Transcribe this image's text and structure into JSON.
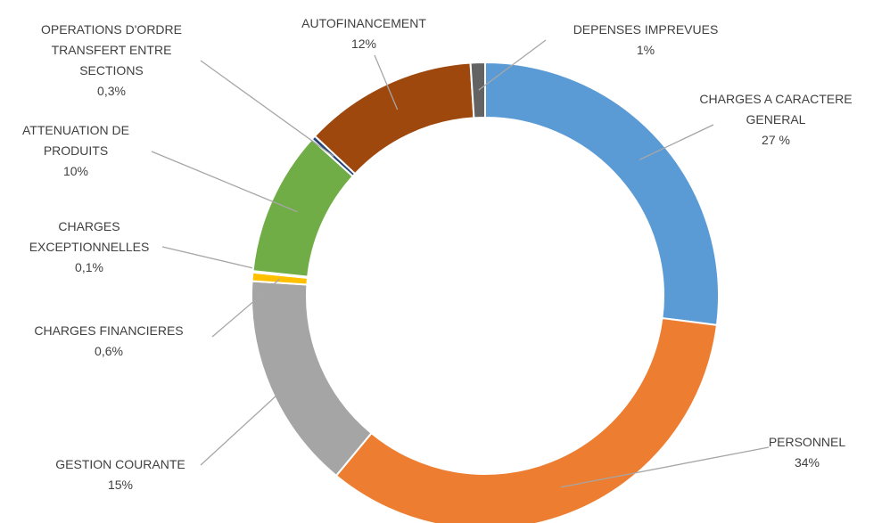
{
  "chart_data": {
    "type": "donut",
    "categories": [
      "CHARGES A CARACTERE GENERAL",
      "PERSONNEL",
      "GESTION COURANTE",
      "CHARGES FINANCIERES",
      "CHARGES EXCEPTIONNELLES",
      "ATTENUATION DE PRODUITS",
      "OPERATIONS D'ORDRE TRANSFERT ENTRE SECTIONS",
      "AUTOFINANCEMENT",
      "DEPENSES IMPREVUES"
    ],
    "values": [
      27,
      34,
      15,
      0.6,
      0.1,
      10,
      0.3,
      12,
      1
    ],
    "value_labels": [
      "27 %",
      "34%",
      "15%",
      "0,6%",
      "0,1%",
      "10%",
      "0,3%",
      "12%",
      "1%"
    ],
    "colors": [
      "#5b9bd5",
      "#ed7d31",
      "#a5a5a5",
      "#ffc000",
      "#4472c4",
      "#70ad47",
      "#264478",
      "#9e480e",
      "#636363"
    ]
  }
}
